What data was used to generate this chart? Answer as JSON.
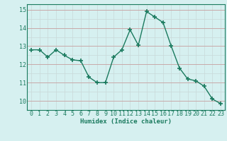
{
  "x": [
    0,
    1,
    2,
    3,
    4,
    5,
    6,
    7,
    8,
    9,
    10,
    11,
    12,
    13,
    14,
    15,
    16,
    17,
    18,
    19,
    20,
    21,
    22,
    23
  ],
  "y": [
    12.8,
    12.8,
    12.4,
    12.8,
    12.5,
    12.25,
    12.2,
    11.3,
    11.0,
    11.0,
    12.4,
    12.8,
    13.9,
    13.05,
    14.9,
    14.6,
    14.3,
    13.0,
    11.8,
    11.2,
    11.1,
    10.8,
    10.1,
    9.85
  ],
  "line_color": "#1a7a5e",
  "marker": "+",
  "marker_size": 4,
  "marker_lw": 1.2,
  "bg_color": "#d6f0f0",
  "grid_color_major": "#c8a8a8",
  "grid_color_minor": "#c8d8d8",
  "xlabel": "Humidex (Indice chaleur)",
  "ylim": [
    9.5,
    15.3
  ],
  "xlim": [
    -0.5,
    23.5
  ],
  "yticks": [
    10,
    11,
    12,
    13,
    14,
    15
  ],
  "xticks": [
    0,
    1,
    2,
    3,
    4,
    5,
    6,
    7,
    8,
    9,
    10,
    11,
    12,
    13,
    14,
    15,
    16,
    17,
    18,
    19,
    20,
    21,
    22,
    23
  ],
  "label_fontsize": 6.5,
  "tick_fontsize": 6.0,
  "line_width": 1.0
}
